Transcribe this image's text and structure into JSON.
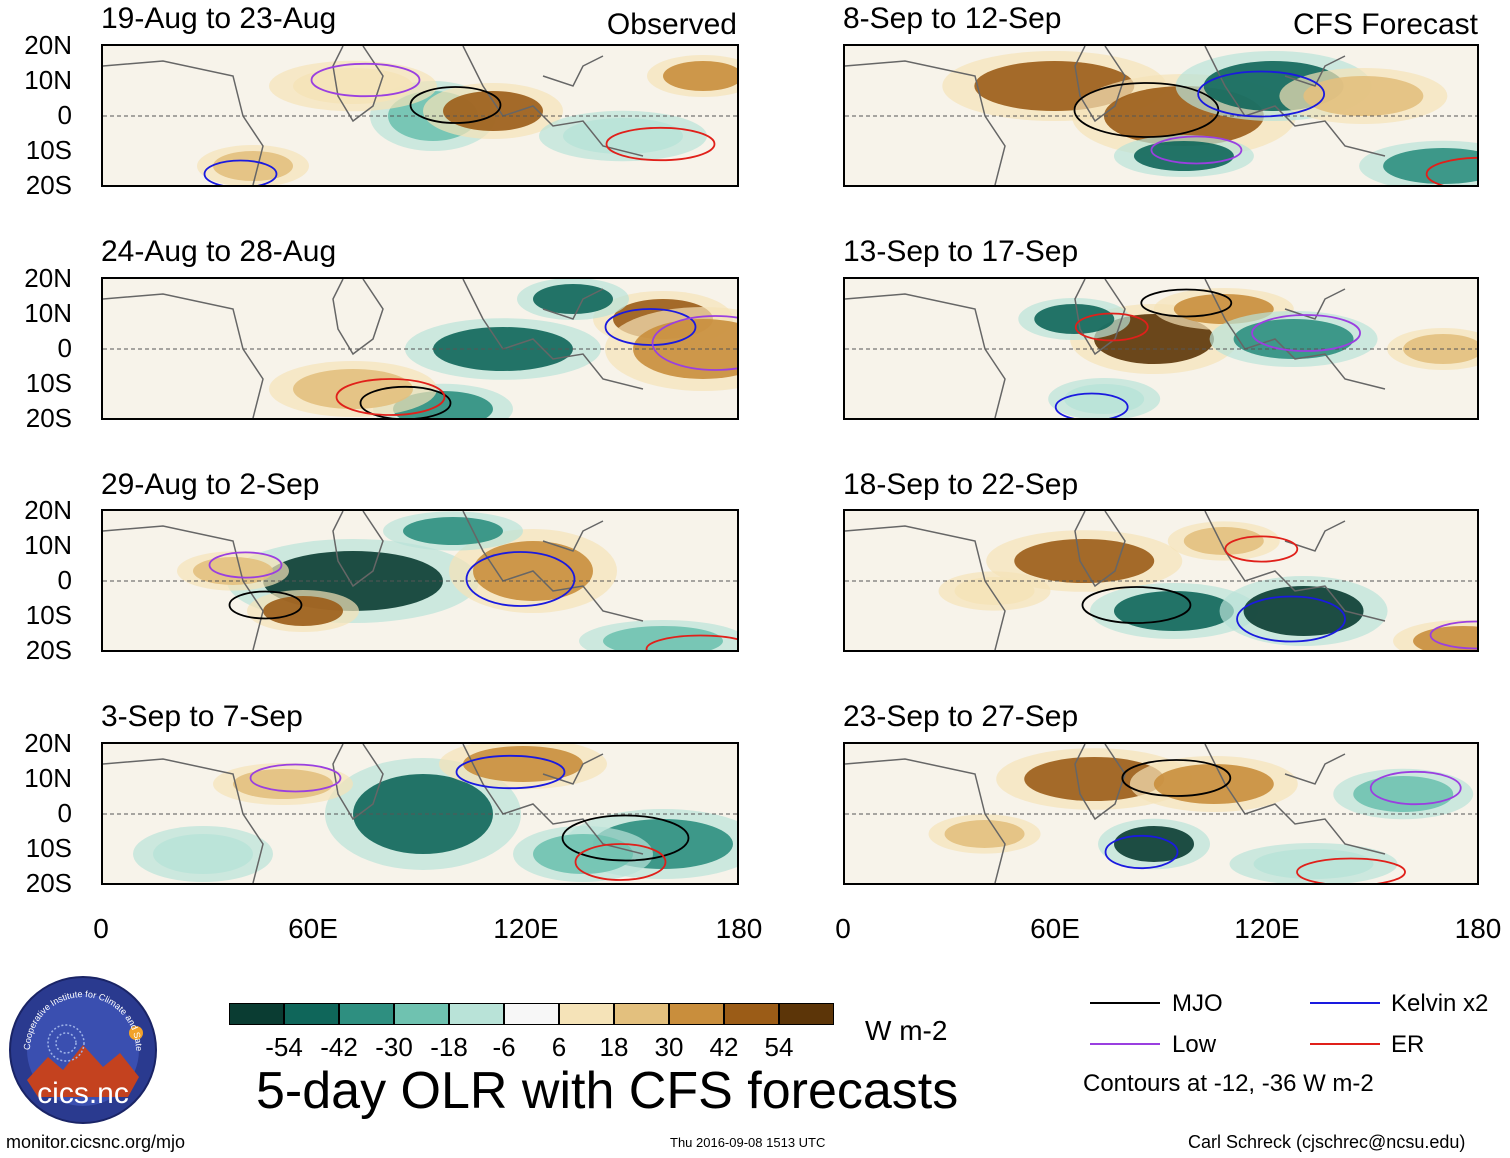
{
  "columns": {
    "left": {
      "tag": "Observed",
      "panels": [
        "19-Aug to 23-Aug",
        "24-Aug to 28-Aug",
        "29-Aug to 2-Sep",
        "3-Sep to 7-Sep"
      ]
    },
    "right": {
      "tag": "CFS Forecast",
      "panels": [
        "8-Sep to 12-Sep",
        "13-Sep to 17-Sep",
        "18-Sep to 22-Sep",
        "23-Sep to 27-Sep"
      ]
    }
  },
  "lat_labels": [
    "20N",
    "10N",
    "0",
    "10S",
    "20S"
  ],
  "lon_labels": [
    "0",
    "60E",
    "120E",
    "180"
  ],
  "colorbar": {
    "labels": [
      "-54",
      "-42",
      "-30",
      "-18",
      "-6",
      "6",
      "18",
      "30",
      "42",
      "54"
    ],
    "colors": [
      "#0a3c32",
      "#0f665a",
      "#2e8f80",
      "#6fc2b0",
      "#b9e3d8",
      "#f7f7f7",
      "#f5e3b8",
      "#e3c07e",
      "#c98e3c",
      "#9b5c17",
      "#5c3508"
    ],
    "units": "W m-2"
  },
  "title": "5-day OLR with CFS forecasts",
  "legend": {
    "items": [
      {
        "label": "MJO",
        "color": "#000000"
      },
      {
        "label": "Kelvin x2",
        "color": "#1a1adf"
      },
      {
        "label": "Low",
        "color": "#9a3fe0"
      },
      {
        "label": "ER",
        "color": "#e0201a"
      }
    ],
    "note": "Contours at -12, -36 W m-2"
  },
  "logo": {
    "text": "cics.nc",
    "arc_text": "Cooperative Institute for Climate and Satellites"
  },
  "footer": {
    "url": "monitor.cicsnc.org/mjo",
    "timestamp": "Thu 2016-09-08 1513 UTC",
    "credit": "Carl Schreck (cjschrec@ncsu.edu)"
  }
}
